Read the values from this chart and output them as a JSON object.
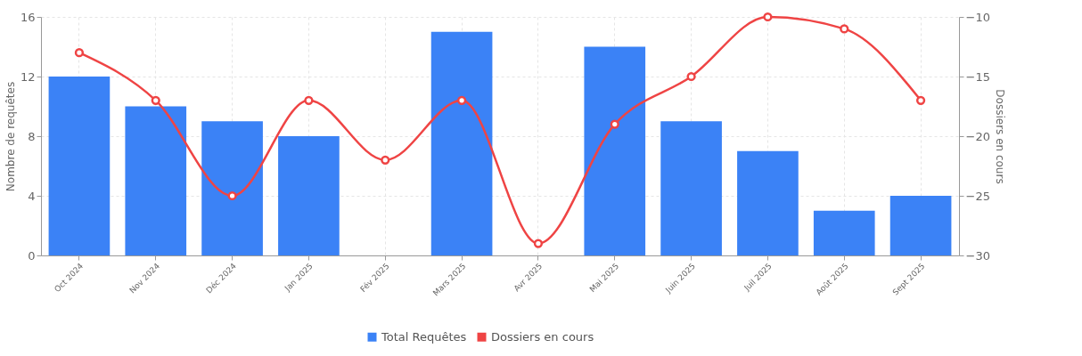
{
  "chart_data": {
    "type": "bar",
    "categories": [
      "Oct 2024",
      "Nov 2024",
      "Déc 2024",
      "Jan 2025",
      "Fév 2025",
      "Mars 2025",
      "Avr 2025",
      "Mai 2025",
      "Juin 2025",
      "Juil 2025",
      "Août 2025",
      "Sept 2025"
    ],
    "ylabel": "Nombre de requêtes",
    "y2label": "Dossiers en cours",
    "ylim": [
      0,
      16
    ],
    "yticks": [
      0,
      4,
      8,
      12,
      16
    ],
    "y2lim": [
      -30,
      -10
    ],
    "y2ticks": [
      -30,
      -25,
      -20,
      -15,
      -10
    ],
    "series": [
      {
        "name": "Total Requêtes",
        "color": "#3b82f6",
        "values": [
          12,
          10,
          9,
          8,
          0,
          15,
          0,
          14,
          9,
          7,
          3,
          4
        ]
      },
      {
        "name": "Dossiers en cours",
        "type": "line",
        "axis": "y2",
        "color": "#ef4444",
        "values": [
          -13,
          -17,
          -25,
          -17,
          -22,
          -17,
          -29,
          -19,
          -15,
          -10,
          -11,
          -17
        ]
      }
    ],
    "grid": true,
    "legend": "bottom",
    "marker": "circle",
    "line_style": "solid"
  }
}
